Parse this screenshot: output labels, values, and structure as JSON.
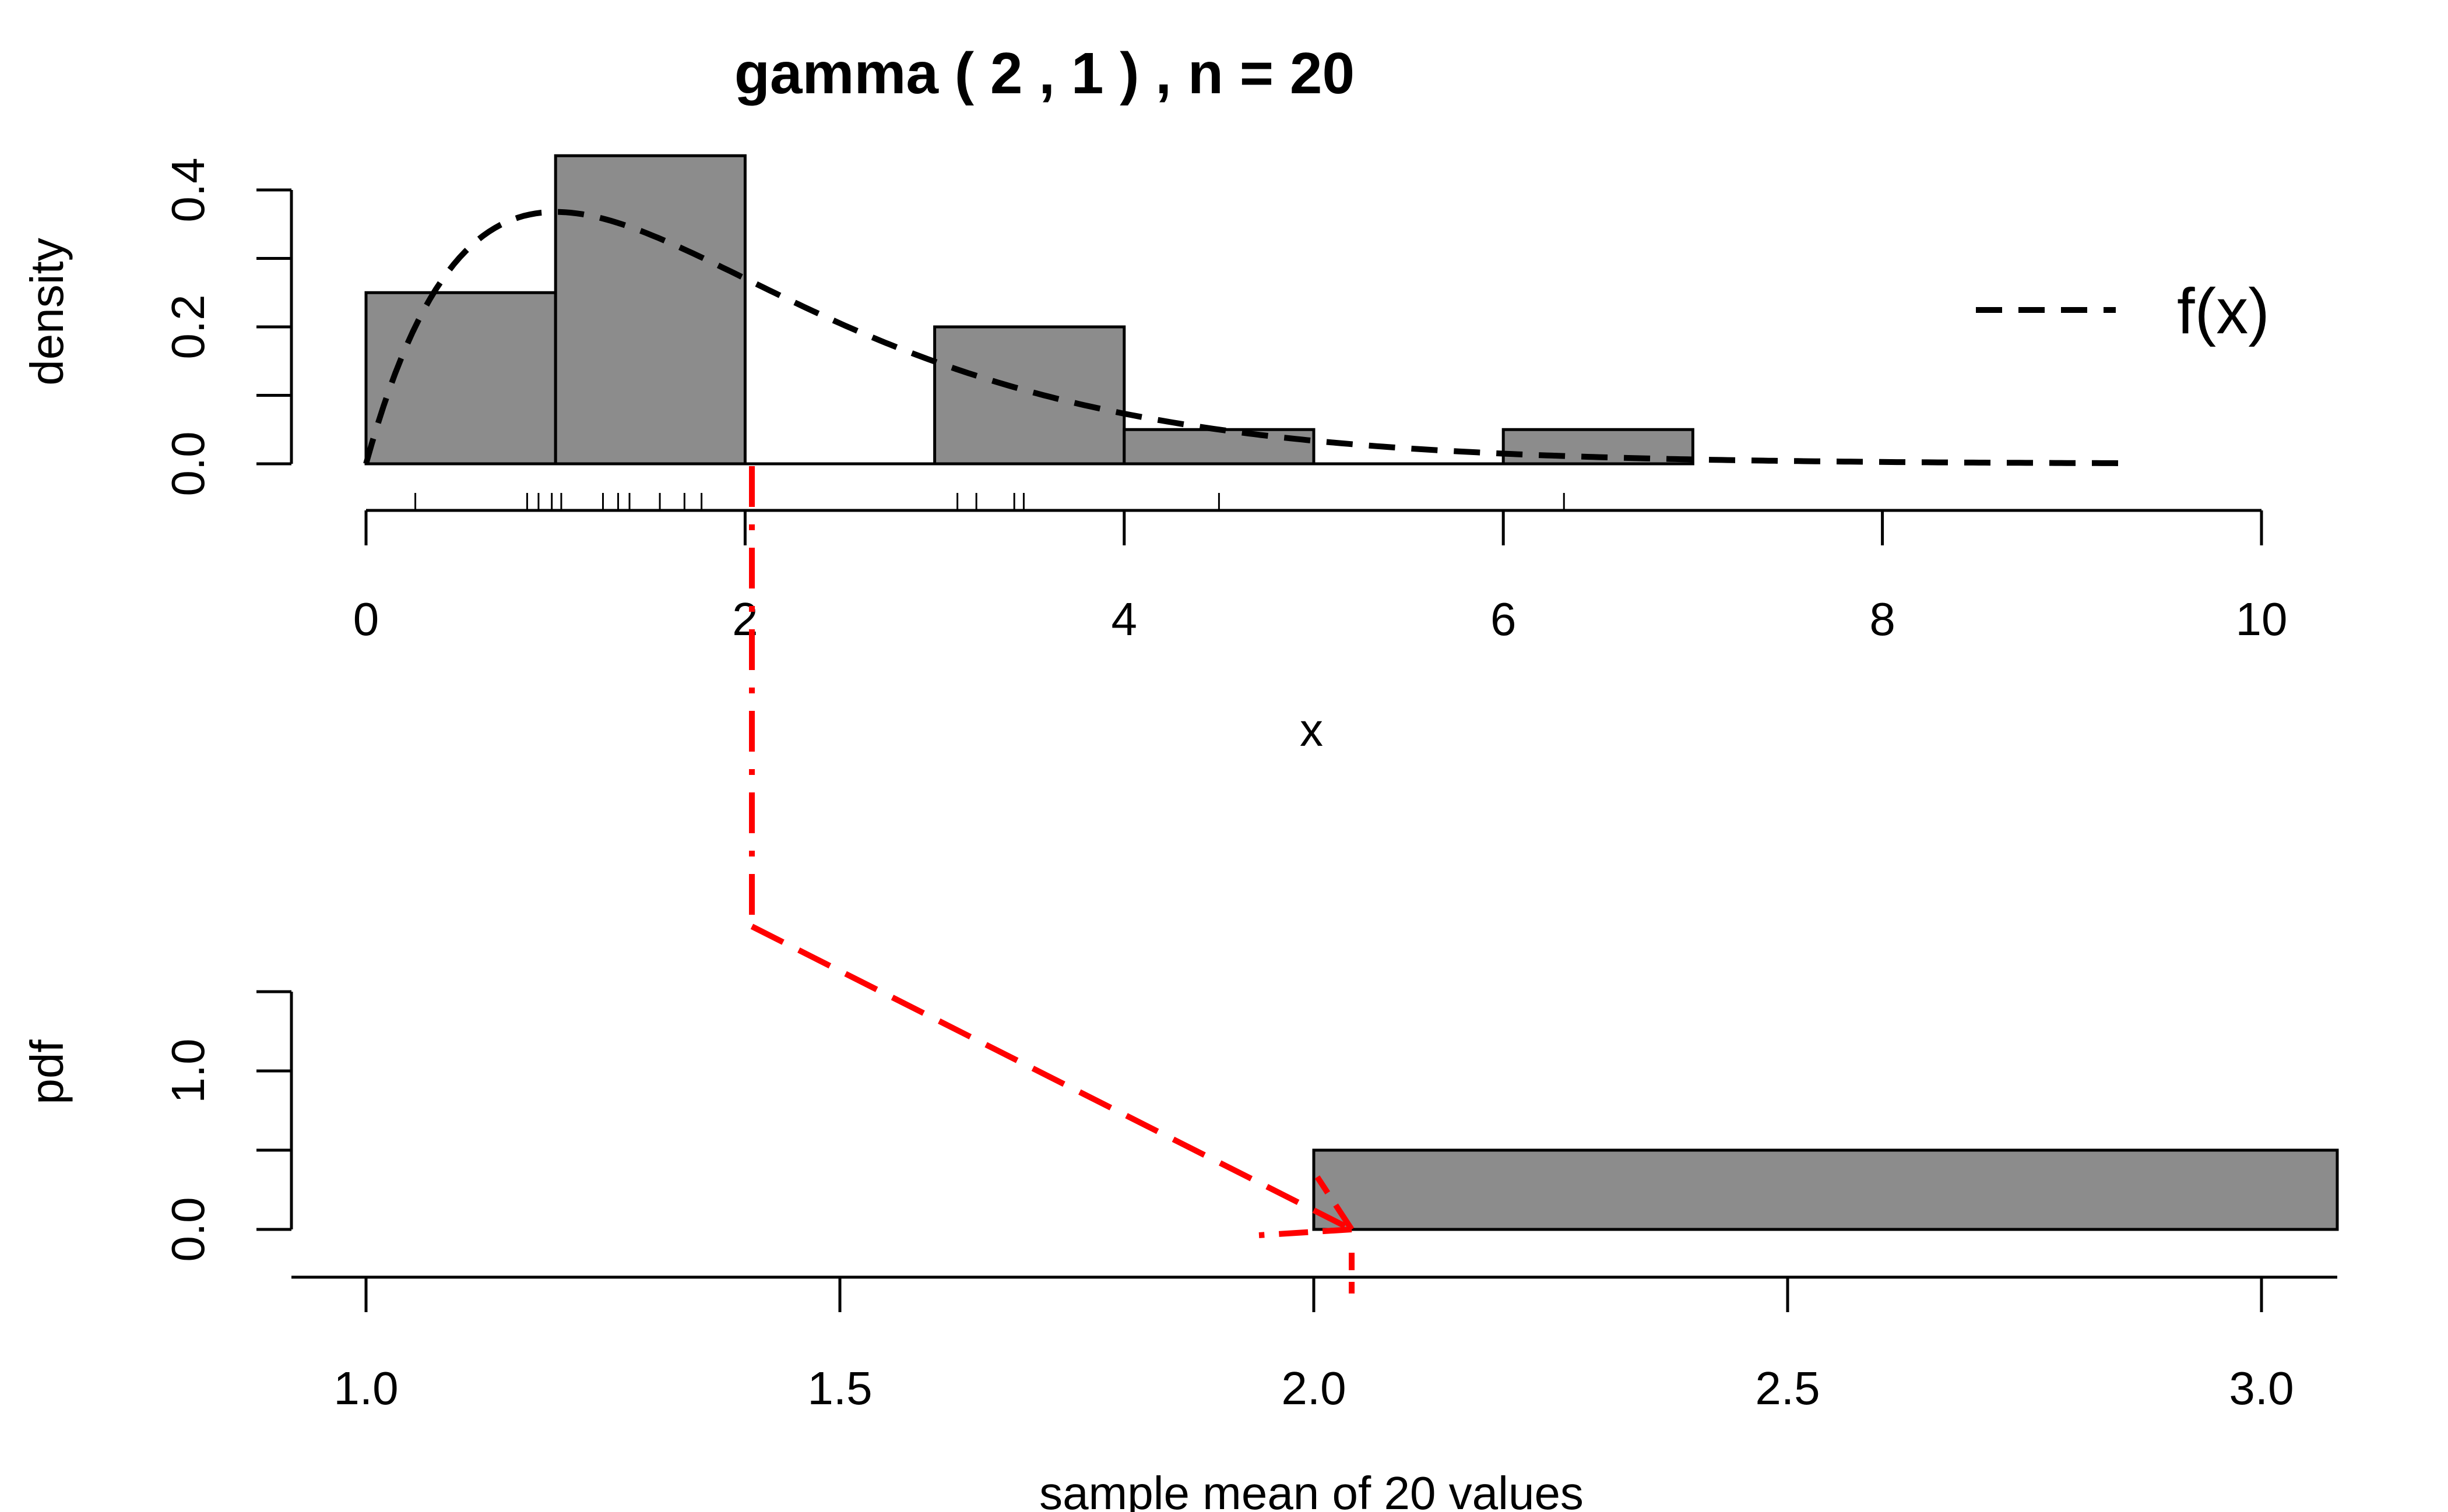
{
  "chart_data": [
    {
      "type": "bar",
      "panel": "top",
      "title": "gamma ( 2 , 1 ) ,  n =  20",
      "xlabel": "x",
      "ylabel": "density",
      "xlim": [
        0,
        10
      ],
      "ylim": [
        0,
        0.4
      ],
      "x_ticks": [
        "0",
        "2",
        "4",
        "6",
        "8",
        "10"
      ],
      "y_ticks": [
        "0.0",
        "0.2",
        "0.4"
      ],
      "bins": [
        {
          "x0": 0,
          "x1": 1,
          "density": 0.25
        },
        {
          "x0": 1,
          "x1": 2,
          "density": 0.45
        },
        {
          "x0": 2,
          "x1": 3,
          "density": 0.0
        },
        {
          "x0": 3,
          "x1": 4,
          "density": 0.2
        },
        {
          "x0": 4,
          "x1": 5,
          "density": 0.05
        },
        {
          "x0": 5,
          "x1": 6,
          "density": 0.0
        },
        {
          "x0": 6,
          "x1": 7,
          "density": 0.05
        }
      ],
      "rug": [
        0.26,
        0.85,
        0.91,
        0.98,
        1.03,
        1.25,
        1.33,
        1.39,
        1.55,
        1.68,
        1.77,
        3.12,
        3.22,
        3.42,
        3.47,
        4.5,
        6.32
      ],
      "series": [
        {
          "name": "f(x)",
          "line_style": "dashed",
          "function": "x*exp(-x)",
          "x_range": [
            0,
            9.25
          ]
        }
      ],
      "legend": {
        "entries": [
          "f(x)"
        ],
        "placement": "top-right"
      },
      "colors": {
        "bar_fill": "#8c8c8c",
        "bar_stroke": "#000000",
        "curve": "#000000"
      }
    },
    {
      "type": "bar",
      "panel": "bottom",
      "xlabel": "sample mean of 20 values",
      "ylabel": "pdf",
      "xlim": [
        1.0,
        3.0
      ],
      "ylim": [
        0,
        1.0
      ],
      "x_ticks": [
        "1.0",
        "1.5",
        "2.0",
        "2.5",
        "3.0"
      ],
      "y_ticks": [
        "0.0",
        "1.0"
      ],
      "bins": [
        {
          "x0": 2.0,
          "x1": 3.0,
          "density": 0.5
        }
      ],
      "sample_mean_marker": 2.04,
      "colors": {
        "bar_fill": "#8c8c8c",
        "bar_stroke": "#000000",
        "arrow": "#ff0000"
      }
    }
  ]
}
